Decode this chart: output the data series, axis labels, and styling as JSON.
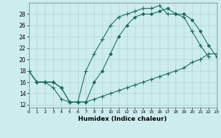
{
  "xlabel": "Humidex (Indice chaleur)",
  "bg_color": "#cceced",
  "grid_color": "#b0d8da",
  "line_color": "#1a6b5e",
  "xlim": [
    0,
    23
  ],
  "ylim": [
    11.5,
    30.0
  ],
  "xticks": [
    0,
    1,
    2,
    3,
    4,
    5,
    6,
    7,
    8,
    9,
    10,
    11,
    12,
    13,
    14,
    15,
    16,
    17,
    18,
    19,
    20,
    21,
    22,
    23
  ],
  "yticks": [
    12,
    14,
    16,
    18,
    20,
    22,
    24,
    26,
    28
  ],
  "curve_upper": {
    "x": [
      0,
      1,
      2,
      3,
      4,
      5,
      6,
      7,
      8,
      9,
      10,
      11,
      12,
      13,
      14,
      15,
      16,
      17,
      18,
      19,
      20,
      21,
      22,
      23
    ],
    "y": [
      18,
      16,
      16,
      16,
      15,
      12.5,
      12.5,
      18,
      21,
      23.5,
      26,
      27.5,
      28,
      28.5,
      29,
      29,
      29.5,
      28,
      28,
      27.5,
      25,
      22.5,
      20.5,
      null
    ]
  },
  "curve_lower": {
    "x": [
      0,
      1,
      2,
      3,
      4,
      5,
      6,
      7,
      8,
      9,
      10,
      11,
      12,
      13,
      14,
      15,
      16,
      17,
      18,
      19,
      20,
      21,
      22,
      23
    ],
    "y": [
      18,
      16,
      16,
      15,
      13,
      12.5,
      12.5,
      12.5,
      13,
      13.5,
      14,
      14.5,
      15,
      15.5,
      16,
      16.5,
      17,
      17.5,
      18,
      18.5,
      19.5,
      20,
      21,
      21
    ]
  },
  "curve_mid": {
    "x": [
      0,
      1,
      2,
      3,
      4,
      5,
      6,
      7,
      8,
      9,
      10,
      11,
      12,
      13,
      14,
      15,
      16,
      17,
      18,
      19,
      20,
      21,
      22,
      23
    ],
    "y": [
      18,
      16,
      16,
      16,
      15,
      12.5,
      12.5,
      12.5,
      16,
      18,
      21,
      24,
      26,
      27.5,
      28,
      28,
      28.5,
      29,
      28,
      28,
      27,
      25,
      22.5,
      20.5
    ]
  }
}
